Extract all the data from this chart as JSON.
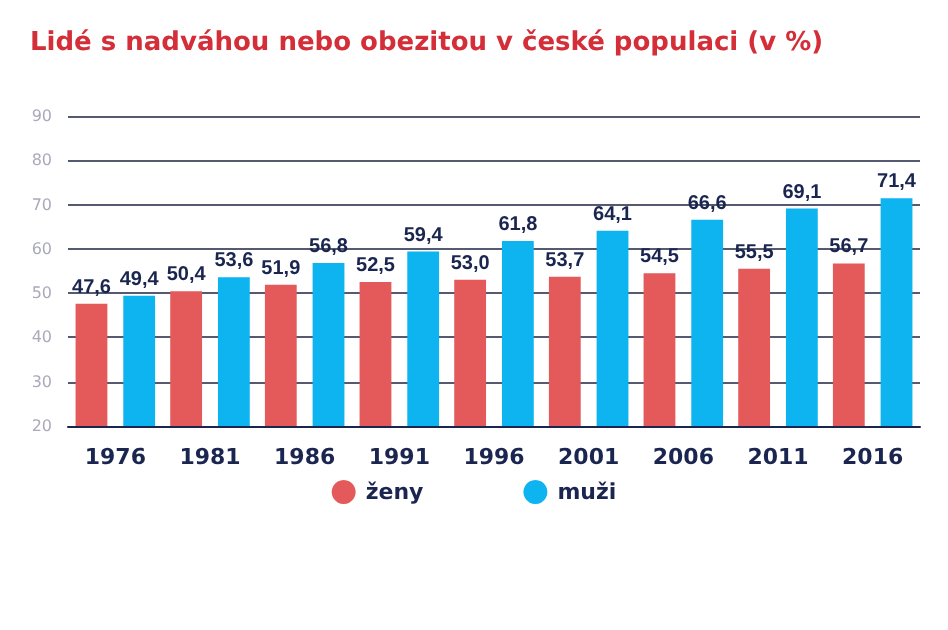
{
  "chart_data": {
    "type": "bar",
    "title": "Lidé s nadváhou nebo obezitou v české populaci (v %)",
    "categories": [
      "1976",
      "1981",
      "1986",
      "1991",
      "1996",
      "2001",
      "2006",
      "2011",
      "2016"
    ],
    "series": [
      {
        "name": "ženy",
        "color": "#e45a5a",
        "values": [
          47.6,
          50.4,
          51.9,
          52.5,
          53.0,
          53.7,
          54.5,
          55.5,
          56.7
        ],
        "value_labels": [
          "47,6",
          "50,4",
          "51,9",
          "52,5",
          "53,0",
          "53,7",
          "54,5",
          "55,5",
          "56,7"
        ]
      },
      {
        "name": "muži",
        "color": "#0db4f0",
        "values": [
          49.4,
          53.6,
          56.8,
          59.4,
          61.8,
          64.1,
          66.6,
          69.1,
          71.4
        ],
        "value_labels": [
          "49,4",
          "53,6",
          "56,8",
          "59,4",
          "61,8",
          "64,1",
          "66,6",
          "69,1",
          "71,4"
        ]
      }
    ],
    "ylim": [
      20,
      90
    ],
    "yticks": [
      20,
      30,
      40,
      50,
      60,
      70,
      80,
      90
    ],
    "grid": "y",
    "legend": "bottom"
  }
}
